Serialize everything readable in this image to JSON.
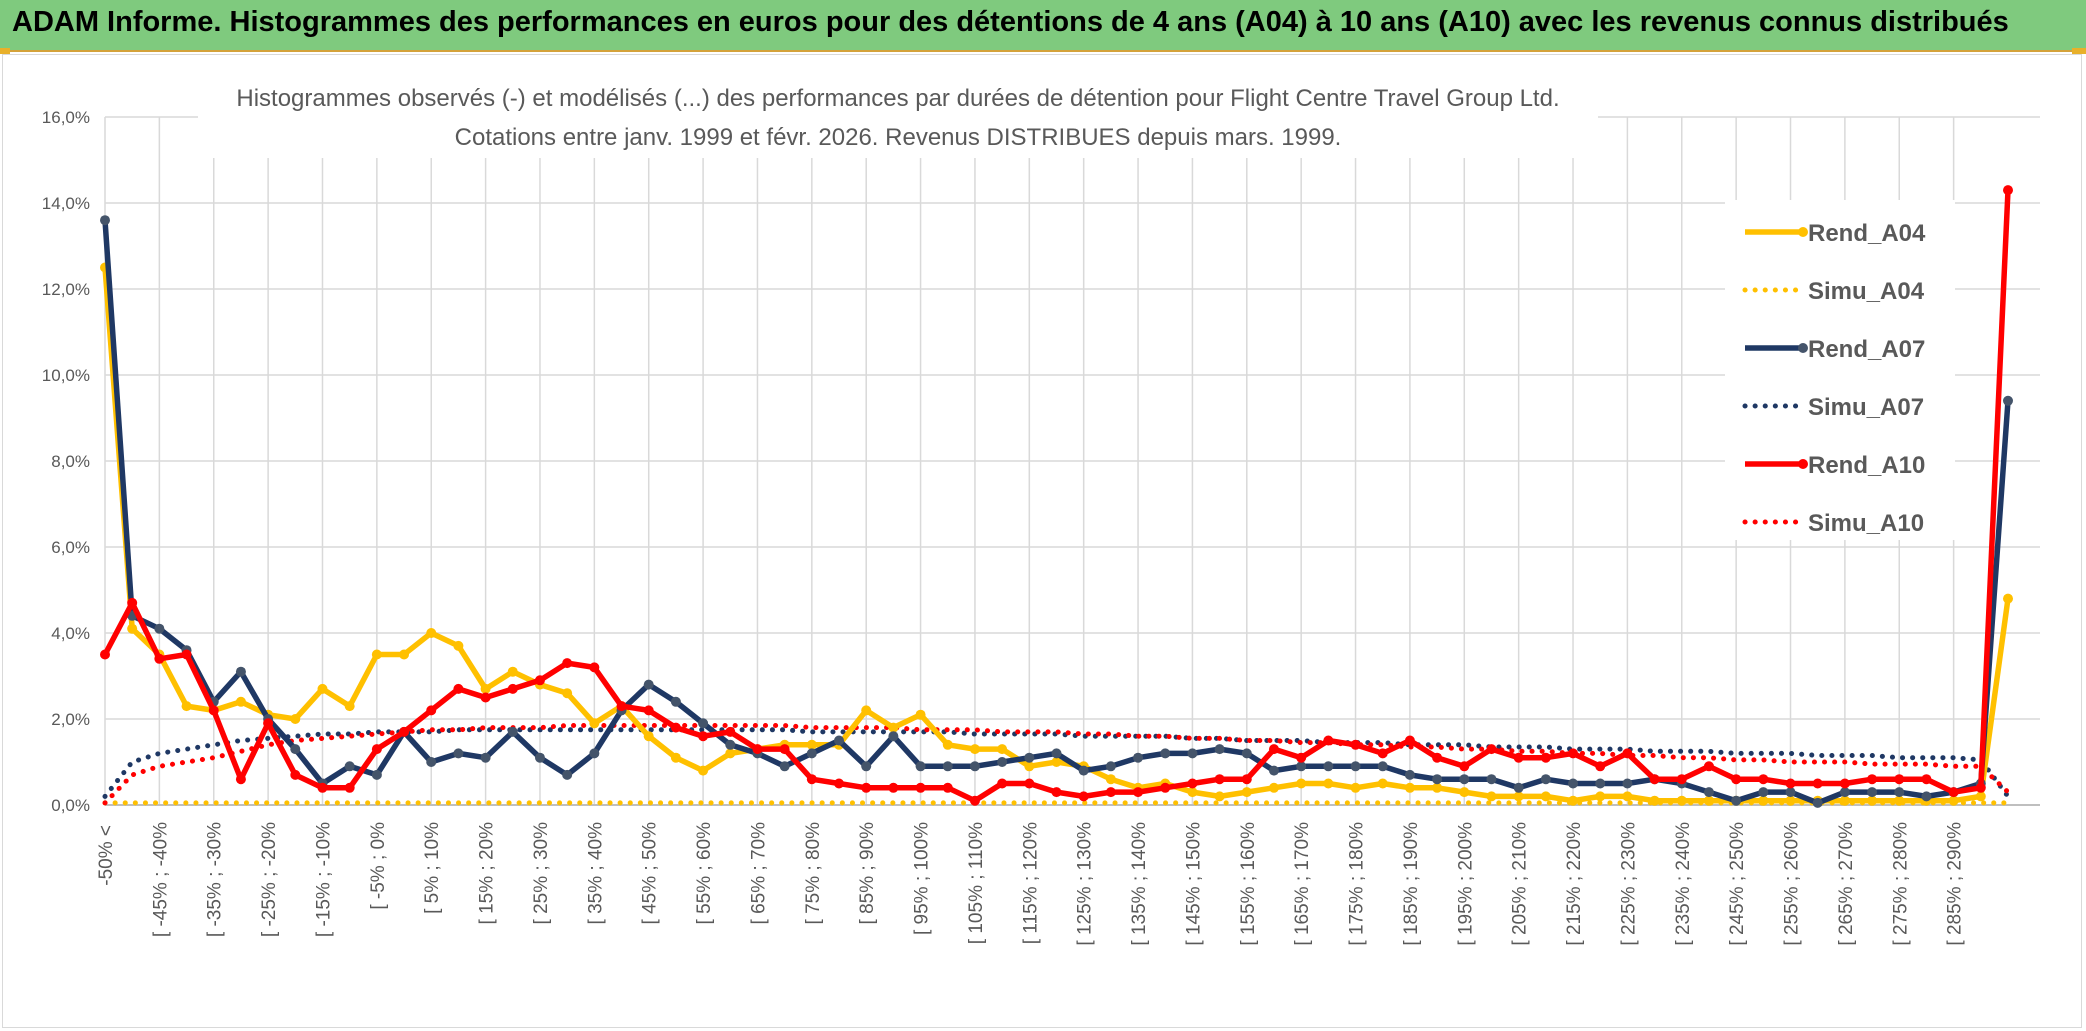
{
  "header": {
    "title": "ADAM Informe. Histogrammes des performances en euros pour des détentions de 4 ans (A04) à 10 ans (A10) avec les revenus connus distribués"
  },
  "chart_data": {
    "type": "line",
    "title": "Histogrammes observés (-) et modélisés (...) des performances par durées de détention pour Flight Centre Travel Group Ltd.",
    "subtitle": "Cotations entre janv. 1999 et févr. 2026. Revenus DISTRIBUES depuis mars. 1999.",
    "xlabel": "",
    "ylabel": "",
    "ylim": [
      0,
      16
    ],
    "y_ticks": [
      "0,0%",
      "2,0%",
      "4,0%",
      "6,0%",
      "8,0%",
      "10,0%",
      "12,0%",
      "14,0%",
      "16,0%"
    ],
    "grid": true,
    "legend_position": "right",
    "x_labels": [
      "-50% <",
      "[ -45% ; -40%",
      "[ -35% ; -30%",
      "[ -25% ; -20%",
      "[ -15% ; -10%",
      "[ -5% ; 0%",
      "[ 5% ; 10%",
      "[ 15% ; 20%",
      "[ 25% ; 30%",
      "[ 35% ; 40%",
      "[ 45% ; 50%",
      "[ 55% ; 60%",
      "[ 65% ; 70%",
      "[ 75% ; 80%",
      "[ 85% ; 90%",
      "[ 95% ; 100%",
      "[ 105% ; 110%",
      "[ 115% ; 120%",
      "[ 125% ; 130%",
      "[ 135% ; 140%",
      "[ 145% ; 150%",
      "[ 155% ; 160%",
      "[ 165% ; 170%",
      "[ 175% ; 180%",
      "[ 185% ; 190%",
      "[ 195% ; 200%",
      "[ 205% ; 210%",
      "[ 215% ; 220%",
      "[ 225% ; 230%",
      "[ 235% ; 240%",
      "[ 245% ; 250%",
      "[ 255% ; 260%",
      "[ 265% ; 270%",
      "[ 275% ; 280%",
      "[ 285% ; 290%"
    ],
    "num_points": 71,
    "series": [
      {
        "name": "Rend_A04",
        "style": "solid",
        "color": "#ffc000",
        "values": [
          12.5,
          4.1,
          3.5,
          2.3,
          2.2,
          2.4,
          2.1,
          2.0,
          2.7,
          2.3,
          3.5,
          3.5,
          4.0,
          3.7,
          2.7,
          3.1,
          2.8,
          2.6,
          1.9,
          2.3,
          1.6,
          1.1,
          0.8,
          1.2,
          1.3,
          1.4,
          1.4,
          1.4,
          2.2,
          1.8,
          2.1,
          1.4,
          1.3,
          1.3,
          0.9,
          1.0,
          0.9,
          0.6,
          0.4,
          0.5,
          0.3,
          0.2,
          0.3,
          0.4,
          0.5,
          0.5,
          0.4,
          0.5,
          0.4,
          0.4,
          0.3,
          0.2,
          0.2,
          0.2,
          0.1,
          0.2,
          0.2,
          0.1,
          0.1,
          0.1,
          0.1,
          0.1,
          0.1,
          0.1,
          0.1,
          0.1,
          0.1,
          0.1,
          0.1,
          0.2,
          4.8
        ]
      },
      {
        "name": "Simu_A04",
        "style": "dotted",
        "color": "#ffc000",
        "values": [
          0.05,
          0.05,
          0.05,
          0.05,
          0.05,
          0.05,
          0.05,
          0.05,
          0.05,
          0.05,
          0.05,
          0.05,
          0.05,
          0.05,
          0.05,
          0.05,
          0.05,
          0.05,
          0.05,
          0.05,
          0.05,
          0.05,
          0.05,
          0.05,
          0.05,
          0.05,
          0.05,
          0.05,
          0.05,
          0.05,
          0.05,
          0.05,
          0.05,
          0.05,
          0.05,
          0.05,
          0.05,
          0.05,
          0.05,
          0.05,
          0.05,
          0.05,
          0.05,
          0.05,
          0.05,
          0.05,
          0.05,
          0.05,
          0.05,
          0.05,
          0.05,
          0.05,
          0.05,
          0.05,
          0.05,
          0.05,
          0.05,
          0.05,
          0.05,
          0.05,
          0.05,
          0.05,
          0.05,
          0.05,
          0.05,
          0.05,
          0.05,
          0.05,
          0.05,
          0.05,
          0.05
        ]
      },
      {
        "name": "Rend_A07",
        "style": "solid",
        "color": "#1f3864",
        "values": [
          13.6,
          4.4,
          4.1,
          3.6,
          2.4,
          3.1,
          2.0,
          1.3,
          0.5,
          0.9,
          0.7,
          1.7,
          1.0,
          1.2,
          1.1,
          1.7,
          1.1,
          0.7,
          1.2,
          2.2,
          2.8,
          2.4,
          1.9,
          1.4,
          1.2,
          0.9,
          1.2,
          1.5,
          0.9,
          1.6,
          0.9,
          0.9,
          0.9,
          1.0,
          1.1,
          1.2,
          0.8,
          0.9,
          1.1,
          1.2,
          1.2,
          1.3,
          1.2,
          0.8,
          0.9,
          0.9,
          0.9,
          0.9,
          0.7,
          0.6,
          0.6,
          0.6,
          0.4,
          0.6,
          0.5,
          0.5,
          0.5,
          0.6,
          0.5,
          0.3,
          0.1,
          0.3,
          0.3,
          0.05,
          0.3,
          0.3,
          0.3,
          0.2,
          0.3,
          0.5,
          9.4
        ]
      },
      {
        "name": "Simu_A07",
        "style": "dotted",
        "color": "#1f3864",
        "values": [
          0.2,
          1.0,
          1.2,
          1.3,
          1.4,
          1.5,
          1.55,
          1.6,
          1.65,
          1.65,
          1.7,
          1.7,
          1.7,
          1.75,
          1.75,
          1.75,
          1.75,
          1.75,
          1.75,
          1.75,
          1.75,
          1.75,
          1.75,
          1.75,
          1.75,
          1.75,
          1.7,
          1.7,
          1.7,
          1.7,
          1.7,
          1.7,
          1.65,
          1.65,
          1.65,
          1.65,
          1.6,
          1.6,
          1.6,
          1.6,
          1.55,
          1.55,
          1.5,
          1.5,
          1.5,
          1.45,
          1.45,
          1.45,
          1.4,
          1.4,
          1.4,
          1.35,
          1.35,
          1.35,
          1.3,
          1.3,
          1.3,
          1.25,
          1.25,
          1.25,
          1.2,
          1.2,
          1.2,
          1.15,
          1.15,
          1.15,
          1.1,
          1.1,
          1.1,
          1.05,
          0.2
        ]
      },
      {
        "name": "Rend_A10",
        "style": "solid",
        "color": "#ff0000",
        "values": [
          3.5,
          4.7,
          3.4,
          3.5,
          2.2,
          0.6,
          1.9,
          0.7,
          0.4,
          0.4,
          1.3,
          1.7,
          2.2,
          2.7,
          2.5,
          2.7,
          2.9,
          3.3,
          3.2,
          2.3,
          2.2,
          1.8,
          1.6,
          1.7,
          1.3,
          1.3,
          0.6,
          0.5,
          0.4,
          0.4,
          0.4,
          0.4,
          0.1,
          0.5,
          0.5,
          0.3,
          0.2,
          0.3,
          0.3,
          0.4,
          0.5,
          0.6,
          0.6,
          1.3,
          1.1,
          1.5,
          1.4,
          1.2,
          1.5,
          1.1,
          0.9,
          1.3,
          1.1,
          1.1,
          1.2,
          0.9,
          1.2,
          0.6,
          0.6,
          0.9,
          0.6,
          0.6,
          0.5,
          0.5,
          0.5,
          0.6,
          0.6,
          0.6,
          0.3,
          0.4,
          14.3
        ]
      },
      {
        "name": "Simu_A10",
        "style": "dotted",
        "color": "#ff0000",
        "values": [
          0.05,
          0.7,
          0.9,
          1.0,
          1.1,
          1.25,
          1.4,
          1.5,
          1.55,
          1.6,
          1.65,
          1.7,
          1.75,
          1.75,
          1.8,
          1.8,
          1.8,
          1.85,
          1.85,
          1.85,
          1.85,
          1.85,
          1.85,
          1.85,
          1.85,
          1.85,
          1.8,
          1.8,
          1.8,
          1.8,
          1.75,
          1.75,
          1.75,
          1.7,
          1.7,
          1.7,
          1.65,
          1.65,
          1.6,
          1.6,
          1.55,
          1.55,
          1.5,
          1.5,
          1.45,
          1.45,
          1.4,
          1.4,
          1.35,
          1.35,
          1.3,
          1.3,
          1.25,
          1.25,
          1.2,
          1.2,
          1.15,
          1.15,
          1.1,
          1.1,
          1.05,
          1.05,
          1.0,
          1.0,
          1.0,
          0.95,
          0.95,
          0.95,
          0.9,
          0.9,
          0.3
        ]
      }
    ]
  }
}
